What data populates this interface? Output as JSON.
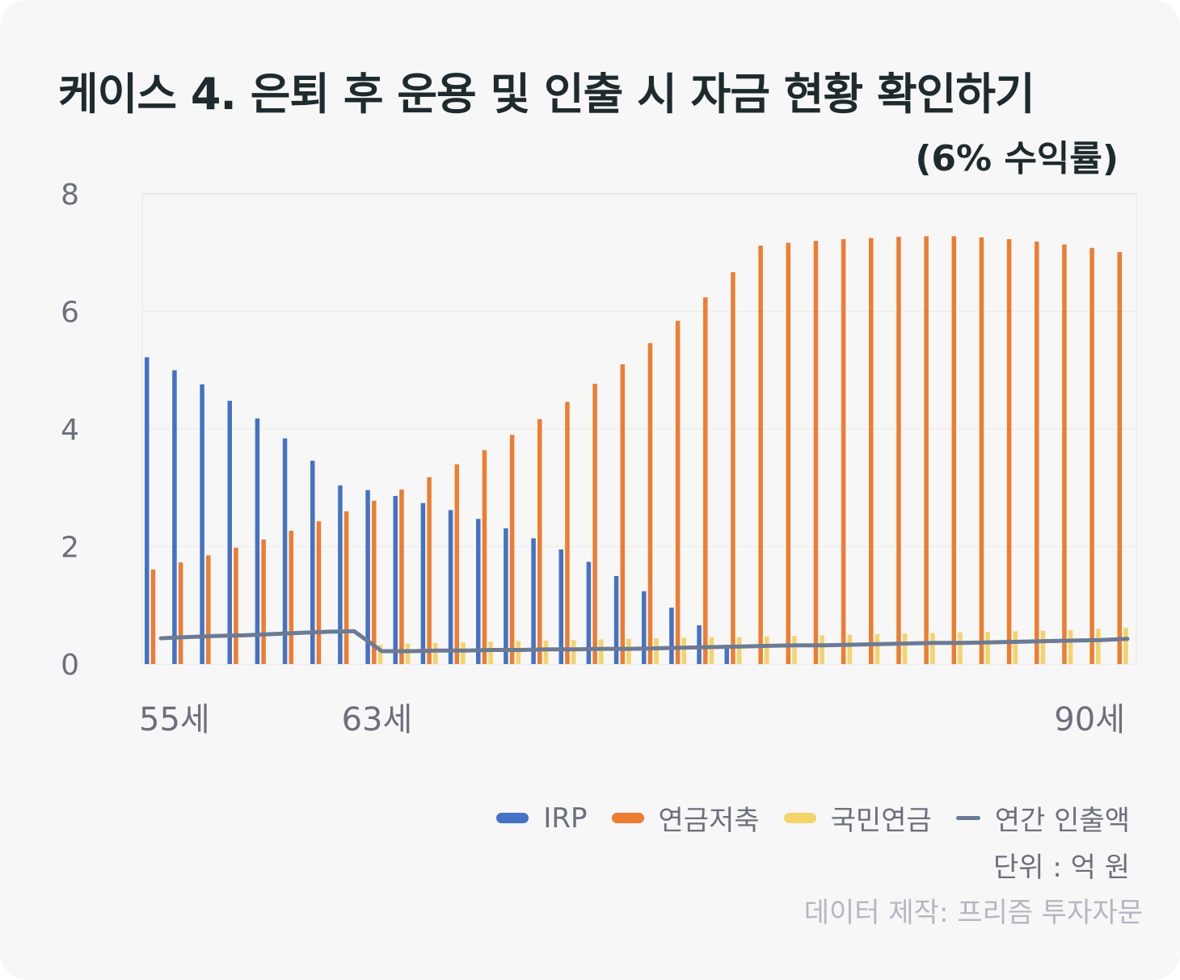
{
  "title": "케이스 4. 은퇴 후 운용 및 인출 시 자금 현황 확인하기",
  "subtitle": "(6% 수익률)",
  "unit_text": "단위 : 억 원",
  "credit_text": "데이터 제작: 프리즘 투자자문",
  "colors": {
    "irp": "#4472c4",
    "savings": "#ed7d31",
    "national": "#f5d36b",
    "withdrawal": "#6b7b95",
    "text": "#6c6f7c",
    "title": "#1e2a2e"
  },
  "chart_data": {
    "type": "bar",
    "ylim": [
      0,
      8
    ],
    "yticks": [
      "0",
      "2",
      "4",
      "6",
      "8"
    ],
    "x_labels": [
      {
        "index": 0,
        "label": "55세"
      },
      {
        "index": 8,
        "label": "63세"
      },
      {
        "index": 35,
        "label": "90세"
      }
    ],
    "legend_position": "bottom-right",
    "grid": true,
    "ages": [
      55,
      56,
      57,
      58,
      59,
      60,
      61,
      62,
      63,
      64,
      65,
      66,
      67,
      68,
      69,
      70,
      71,
      72,
      73,
      74,
      75,
      76,
      77,
      78,
      79,
      80,
      81,
      82,
      83,
      84,
      85,
      86,
      87,
      88,
      89,
      90
    ],
    "series": [
      {
        "name": "IRP",
        "type": "bar",
        "color": "#4472c4",
        "values": [
          5.22,
          5.0,
          4.76,
          4.48,
          4.18,
          3.84,
          3.46,
          3.04,
          2.96,
          2.86,
          2.74,
          2.62,
          2.47,
          2.31,
          2.14,
          1.95,
          1.74,
          1.5,
          1.24,
          0.96,
          0.66,
          0.33,
          0,
          0,
          0,
          0,
          0,
          0,
          0,
          0,
          0,
          0,
          0,
          0,
          0,
          0
        ]
      },
      {
        "name": "연금저축",
        "type": "bar",
        "color": "#ed7d31",
        "values": [
          1.61,
          1.73,
          1.85,
          1.98,
          2.12,
          2.27,
          2.43,
          2.6,
          2.78,
          2.97,
          3.18,
          3.4,
          3.64,
          3.9,
          4.17,
          4.46,
          4.77,
          5.1,
          5.46,
          5.84,
          6.24,
          6.67,
          7.12,
          7.17,
          7.2,
          7.23,
          7.25,
          7.27,
          7.28,
          7.28,
          7.26,
          7.23,
          7.19,
          7.14,
          7.08,
          7.01
        ]
      },
      {
        "name": "국민연금",
        "type": "bar",
        "color": "#f5d36b",
        "values": [
          0,
          0,
          0,
          0,
          0,
          0,
          0,
          0,
          0.33,
          0.35,
          0.36,
          0.37,
          0.38,
          0.39,
          0.4,
          0.41,
          0.42,
          0.43,
          0.44,
          0.45,
          0.46,
          0.46,
          0.47,
          0.48,
          0.49,
          0.5,
          0.51,
          0.52,
          0.53,
          0.54,
          0.55,
          0.56,
          0.57,
          0.58,
          0.6,
          0.62
        ]
      },
      {
        "name": "연간 인출액",
        "type": "line",
        "color": "#6b7b95",
        "values": [
          0.44,
          0.46,
          0.48,
          0.49,
          0.51,
          0.53,
          0.55,
          0.56,
          0.22,
          0.22,
          0.23,
          0.23,
          0.24,
          0.24,
          0.25,
          0.25,
          0.26,
          0.26,
          0.27,
          0.28,
          0.29,
          0.3,
          0.31,
          0.32,
          0.32,
          0.33,
          0.34,
          0.35,
          0.36,
          0.36,
          0.37,
          0.38,
          0.39,
          0.4,
          0.41,
          0.43
        ]
      }
    ]
  }
}
